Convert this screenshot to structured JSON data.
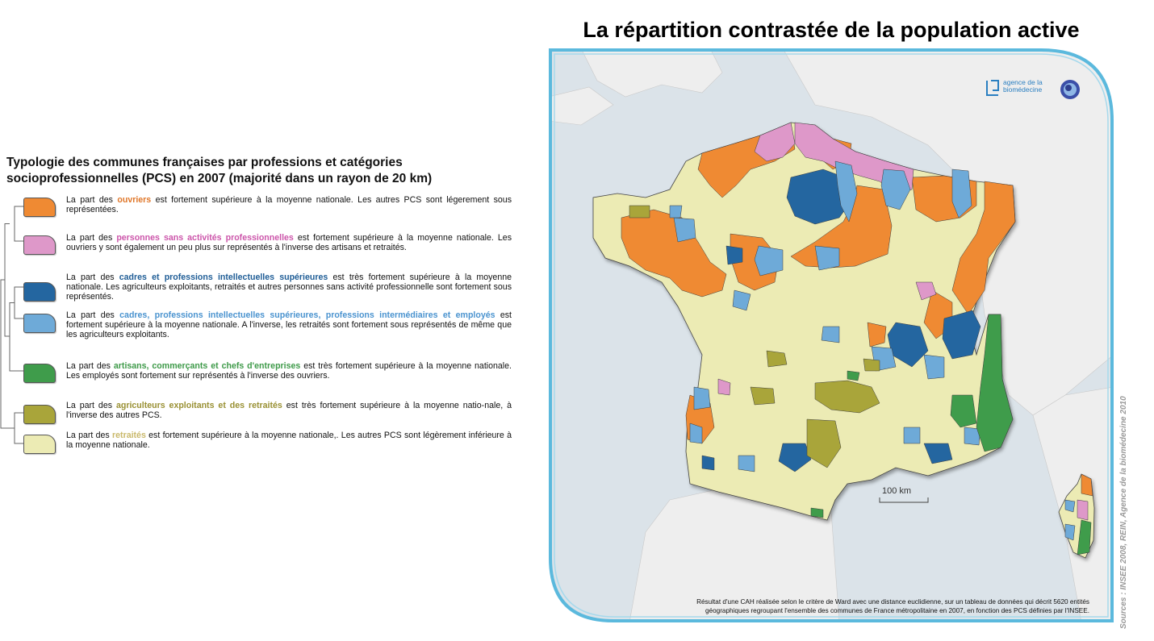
{
  "legend": {
    "title_line1": "Typologie des communes françaises par professions et catégories",
    "title_line2": "socioprofessionnelles (PCS) en 2007 (majorité dans un rayon de 20 km)",
    "items": [
      {
        "pre": "La part des ",
        "highlight": "ouvriers",
        "post": " est fortement supérieure à la moyenne nationale. Les autres PCS sont légerement sous représentées.",
        "color": "#ef8a33",
        "text_color": "#e0772a"
      },
      {
        "pre": "La part des ",
        "highlight": "personnes sans activités professionnelles",
        "post": " est fortement supérieure à la moyenne nationale. Les ouvriers y sont également un peu plus sur représentés à l'inverse des artisans et retraités.",
        "color": "#de98c9",
        "text_color": "#cc55aa"
      },
      {
        "pre": "La part des ",
        "highlight": "cadres et professions intellectuelles supérieures",
        "post": " est très fortement supérieure à la moyenne nationale.  Les agriculteurs exploitants, retraités et autres personnes sans activité professionnelle sont fortement sous représentés.",
        "color": "#2466a0",
        "text_color": "#1f5d96"
      },
      {
        "pre": "La part des ",
        "highlight": "cadres, professions intellectuelles supérieures, professions intermédiaires et employés",
        "post": " est fortement supérieure à la moyenne nationale. A l'inverse, les retraités sont fortement sous représentés de même que les agriculteurs exploitants.",
        "color": "#6eaad8",
        "text_color": "#4a93cf"
      },
      {
        "pre": "La part des ",
        "highlight": "artisans, commerçants et chefs d'entreprises",
        "post": " est très fortement supérieure à la moyenne nationale. Les employés sont fortement sur représentés à l'inverse des ouvriers.",
        "color": "#3f9c4b",
        "text_color": "#3e9a49"
      },
      {
        "pre": "La part des ",
        "highlight": "agriculteurs exploitants et des retraités",
        "post": " est très fortement supérieure à la moyenne natio-nale, à l'inverse des autres PCS.",
        "color": "#a9a53a",
        "text_color": "#999033"
      },
      {
        "pre": "La part des ",
        "highlight": "retraités",
        "post": " est fortement supérieure à la moyenne nationale,. Les autres PCS sont légèrement inférieure à la moyenne nationale.",
        "color": "#ecebb4",
        "text_color": "#c9b86a"
      }
    ]
  },
  "map": {
    "title": "La répartition contrastée de la population active",
    "scale_label": "100 km",
    "caption_line1": "Résultat d'une CAH réalisée selon le critère de Ward avec une distance euclidienne, sur un tableau de données qui décrit 5620 entités",
    "caption_line2": "géographiques regroupant l'ensemble des communes de France métropolitaine en 2007, en fonction des PCS définies par l'INSEE.",
    "source": "Sources : INSEE 2008, REIN, Agence de la biomédecine 2010",
    "logo_line1": "agence de la",
    "logo_line2": "biomédecine",
    "frame_color": "#5bb9dd",
    "sea_color": "#dbe3e9",
    "land_color": "#eeeeee"
  }
}
